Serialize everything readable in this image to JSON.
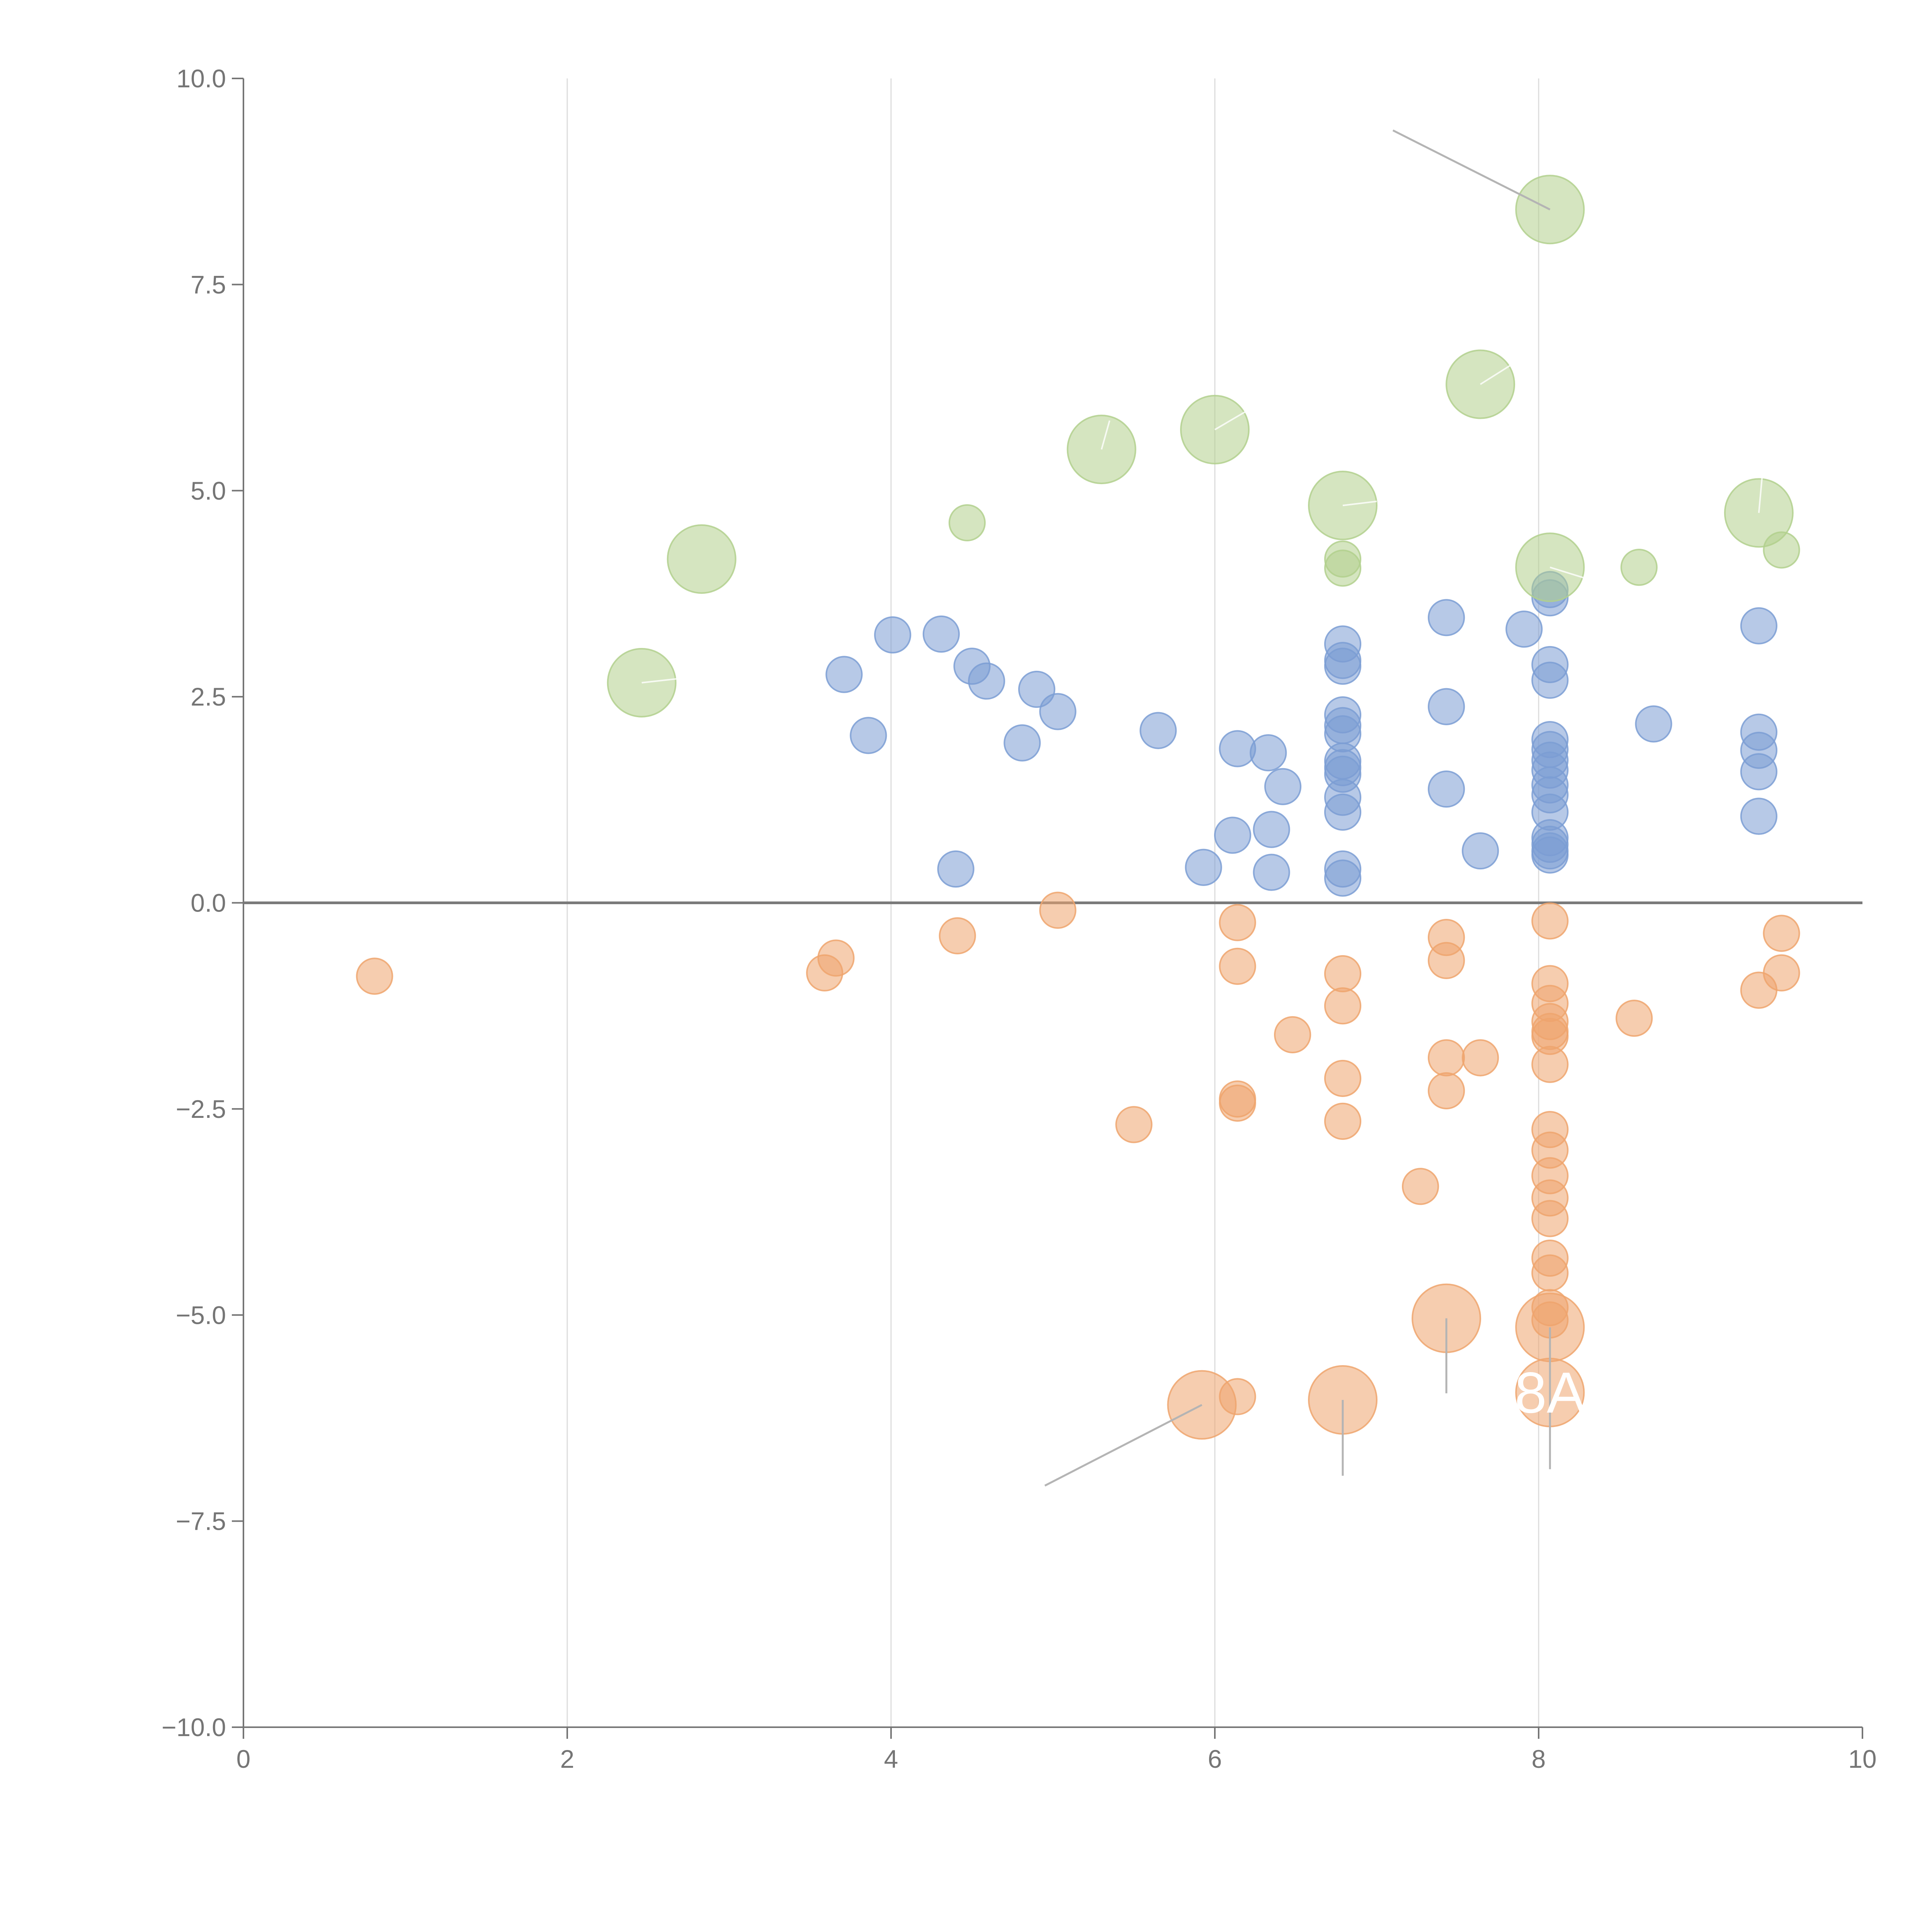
{
  "colors": {
    "blue": "#7b9dd3",
    "orange": "#eea46d",
    "green": "#b2d08d",
    "axis": "#757575",
    "grid": "#dcdcdc"
  },
  "chart_data": {
    "type": "scatter",
    "title": "",
    "xlabel": "",
    "ylabel": "",
    "xlim": [
      0,
      10
    ],
    "ylim": [
      -10,
      10
    ],
    "x_ticks": [
      "0",
      "2",
      "4",
      "6",
      "8",
      "10"
    ],
    "y_ticks": [
      "10.0",
      "7.5",
      "5.0",
      "2.5",
      "0.0",
      "−2.5",
      "−5.0",
      "−7.5",
      "−10.0"
    ],
    "grid": "vertical",
    "reference_line": {
      "y": 0
    },
    "series": [
      {
        "name": "blue",
        "color": "#7b9dd3",
        "points": [
          [
            3.71,
            2.77,
            0.11
          ],
          [
            3.86,
            2.03,
            0.11
          ],
          [
            4.01,
            3.25,
            0.11
          ],
          [
            4.31,
            3.26,
            0.11
          ],
          [
            4.5,
            2.87,
            0.11
          ],
          [
            4.59,
            2.69,
            0.11
          ],
          [
            4.81,
            1.94,
            0.11
          ],
          [
            4.9,
            2.59,
            0.11
          ],
          [
            5.03,
            2.32,
            0.11
          ],
          [
            4.4,
            0.41,
            0.11
          ],
          [
            5.65,
            2.09,
            0.11
          ],
          [
            5.93,
            0.43,
            0.11
          ],
          [
            6.11,
            0.82,
            0.11
          ],
          [
            6.14,
            1.87,
            0.11
          ],
          [
            6.33,
            1.82,
            0.11
          ],
          [
            6.42,
            1.41,
            0.11
          ],
          [
            6.35,
            0.89,
            0.11
          ],
          [
            6.35,
            0.37,
            0.11
          ],
          [
            6.79,
            3.14,
            0.11
          ],
          [
            6.79,
            2.94,
            0.11
          ],
          [
            6.79,
            2.87,
            0.11
          ],
          [
            6.79,
            2.28,
            0.11
          ],
          [
            6.79,
            2.15,
            0.11
          ],
          [
            6.79,
            2.05,
            0.11
          ],
          [
            6.79,
            1.72,
            0.11
          ],
          [
            6.79,
            1.64,
            0.11
          ],
          [
            6.79,
            1.56,
            0.11
          ],
          [
            6.79,
            1.28,
            0.11
          ],
          [
            6.79,
            1.1,
            0.11
          ],
          [
            6.79,
            0.41,
            0.11
          ],
          [
            6.79,
            0.3,
            0.11
          ],
          [
            7.43,
            3.46,
            0.11
          ],
          [
            7.43,
            2.38,
            0.11
          ],
          [
            7.43,
            1.38,
            0.11
          ],
          [
            7.64,
            0.63,
            0.11
          ],
          [
            7.91,
            3.32,
            0.11
          ],
          [
            8.07,
            3.8,
            0.11
          ],
          [
            8.07,
            3.7,
            0.11
          ],
          [
            8.07,
            2.89,
            0.11
          ],
          [
            8.07,
            2.7,
            0.11
          ],
          [
            8.07,
            1.98,
            0.11
          ],
          [
            8.07,
            1.86,
            0.11
          ],
          [
            8.07,
            1.73,
            0.11
          ],
          [
            8.07,
            1.61,
            0.11
          ],
          [
            8.07,
            1.43,
            0.11
          ],
          [
            8.07,
            1.31,
            0.11
          ],
          [
            8.07,
            1.1,
            0.11
          ],
          [
            8.07,
            0.79,
            0.11
          ],
          [
            8.07,
            0.71,
            0.11
          ],
          [
            8.07,
            0.63,
            0.11
          ],
          [
            8.07,
            0.58,
            0.11
          ],
          [
            8.71,
            2.17,
            0.11
          ],
          [
            9.36,
            3.36,
            0.11
          ],
          [
            9.36,
            2.07,
            0.11
          ],
          [
            9.36,
            1.85,
            0.11
          ],
          [
            9.36,
            1.59,
            0.11
          ],
          [
            9.36,
            1.05,
            0.11
          ]
        ]
      },
      {
        "name": "orange",
        "color": "#eea46d",
        "points": [
          [
            0.81,
            -0.89,
            0.11
          ],
          [
            3.59,
            -0.85,
            0.11
          ],
          [
            3.66,
            -0.67,
            0.11
          ],
          [
            4.41,
            -0.4,
            0.11
          ],
          [
            5.03,
            -0.09,
            0.11
          ],
          [
            5.5,
            -2.69,
            0.11
          ],
          [
            6.14,
            -0.24,
            0.11
          ],
          [
            6.14,
            -0.77,
            0.11
          ],
          [
            6.14,
            -2.38,
            0.11
          ],
          [
            6.14,
            -2.43,
            0.11
          ],
          [
            6.14,
            -5.99,
            0.11
          ],
          [
            6.48,
            -1.6,
            0.11
          ],
          [
            6.79,
            -0.86,
            0.11
          ],
          [
            6.79,
            -1.25,
            0.11
          ],
          [
            6.79,
            -2.13,
            0.11
          ],
          [
            6.79,
            -2.65,
            0.11
          ],
          [
            7.27,
            -3.44,
            0.11
          ],
          [
            7.43,
            -0.42,
            0.11
          ],
          [
            7.43,
            -0.7,
            0.11
          ],
          [
            7.43,
            -1.88,
            0.11
          ],
          [
            7.43,
            -2.28,
            0.11
          ],
          [
            7.64,
            -1.88,
            0.11
          ],
          [
            8.07,
            -0.22,
            0.11
          ],
          [
            8.07,
            -0.98,
            0.11
          ],
          [
            8.07,
            -1.22,
            0.11
          ],
          [
            8.07,
            -1.44,
            0.11
          ],
          [
            8.07,
            -1.56,
            0.11
          ],
          [
            8.07,
            -1.62,
            0.11
          ],
          [
            8.07,
            -1.96,
            0.11
          ],
          [
            8.07,
            -2.75,
            0.11
          ],
          [
            8.07,
            -3.0,
            0.11
          ],
          [
            8.07,
            -3.31,
            0.11
          ],
          [
            8.07,
            -3.58,
            0.11
          ],
          [
            8.07,
            -3.83,
            0.11
          ],
          [
            8.07,
            -4.31,
            0.11
          ],
          [
            8.07,
            -4.49,
            0.11
          ],
          [
            8.07,
            -4.91,
            0.11
          ],
          [
            8.07,
            -5.06,
            0.11
          ],
          [
            8.59,
            -1.4,
            0.11
          ],
          [
            9.36,
            -1.06,
            0.11
          ],
          [
            9.5,
            -0.37,
            0.11
          ],
          [
            9.5,
            -0.85,
            0.11
          ],
          [
            5.92,
            -6.09,
            0.21
          ],
          [
            6.79,
            -6.03,
            0.21
          ],
          [
            7.43,
            -5.04,
            0.21
          ],
          [
            8.07,
            -5.15,
            0.21
          ],
          [
            8.07,
            -5.94,
            0.21
          ]
        ]
      },
      {
        "name": "green",
        "color": "#b2d08d",
        "points": [
          [
            2.46,
            2.67,
            0.21
          ],
          [
            2.83,
            4.17,
            0.21
          ],
          [
            4.47,
            4.61,
            0.11
          ],
          [
            5.3,
            5.5,
            0.21
          ],
          [
            6.0,
            5.74,
            0.21
          ],
          [
            6.79,
            4.82,
            0.21
          ],
          [
            6.79,
            4.17,
            0.11
          ],
          [
            6.79,
            4.06,
            0.11
          ],
          [
            7.64,
            6.29,
            0.21
          ],
          [
            8.07,
            8.41,
            0.21
          ],
          [
            8.07,
            4.07,
            0.21
          ],
          [
            8.62,
            4.07,
            0.11
          ],
          [
            9.36,
            4.73,
            0.21
          ],
          [
            9.5,
            4.28,
            0.11
          ]
        ]
      }
    ],
    "annotations": [
      {
        "text": "8A",
        "series": "orange",
        "x": 8.07,
        "y": -5.94
      }
    ]
  }
}
